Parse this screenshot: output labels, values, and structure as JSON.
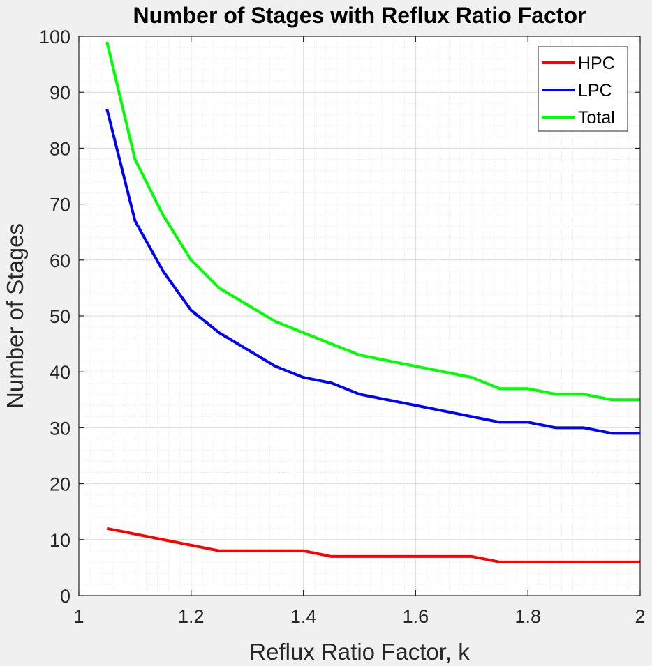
{
  "chart_data": {
    "type": "line",
    "title": "Number of Stages with Reflux Ratio Factor",
    "xlabel": "Reflux Ratio Factor, k",
    "ylabel": "Number of Stages",
    "xlim": [
      1,
      2
    ],
    "ylim": [
      0,
      100
    ],
    "xticks": [
      1,
      1.2,
      1.4,
      1.6,
      1.8,
      2
    ],
    "xtick_labels": [
      "1",
      "1.2",
      "1.4",
      "1.6",
      "1.8",
      "2"
    ],
    "yticks": [
      0,
      10,
      20,
      30,
      40,
      50,
      60,
      70,
      80,
      90,
      100
    ],
    "ytick_labels": [
      "0",
      "10",
      "20",
      "30",
      "40",
      "50",
      "60",
      "70",
      "80",
      "90",
      "100"
    ],
    "grid": true,
    "minor_grid": true,
    "legend_position": "top-right",
    "x": [
      1.05,
      1.1,
      1.15,
      1.2,
      1.25,
      1.3,
      1.35,
      1.4,
      1.45,
      1.5,
      1.55,
      1.6,
      1.65,
      1.7,
      1.75,
      1.8,
      1.85,
      1.9,
      1.95,
      2.0
    ],
    "series": [
      {
        "name": "HPC",
        "color": "#ff0000",
        "values": [
          12,
          11,
          10,
          9,
          8,
          8,
          8,
          8,
          7,
          7,
          7,
          7,
          7,
          7,
          6,
          6,
          6,
          6,
          6,
          6
        ]
      },
      {
        "name": "LPC",
        "color": "#0000ff",
        "values": [
          87,
          67,
          58,
          51,
          47,
          44,
          41,
          39,
          38,
          36,
          35,
          34,
          33,
          32,
          31,
          31,
          30,
          30,
          29,
          29
        ]
      },
      {
        "name": "Total",
        "color": "#00ff00",
        "values": [
          99,
          78,
          68,
          60,
          55,
          52,
          49,
          47,
          45,
          43,
          42,
          41,
          40,
          39,
          37,
          37,
          36,
          36,
          35,
          35
        ]
      }
    ]
  }
}
